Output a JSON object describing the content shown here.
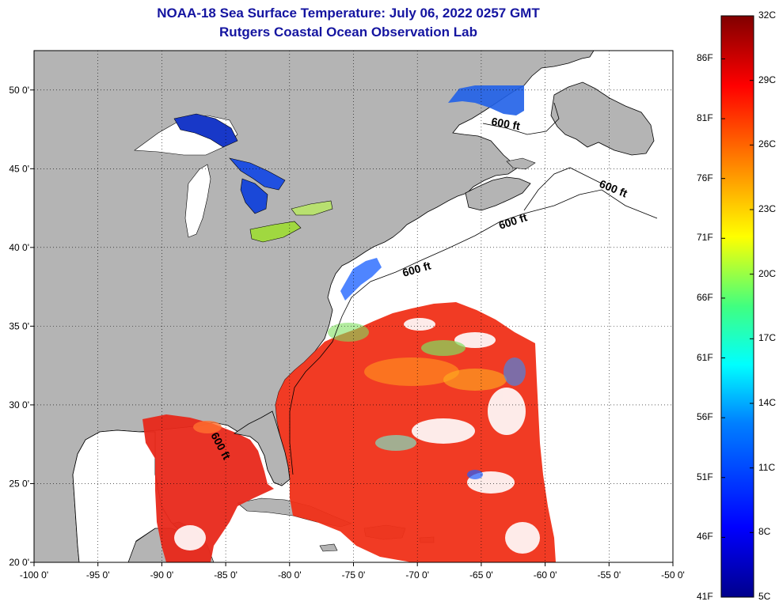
{
  "title": "NOAA-18 Sea Surface Temperature:  July 06, 2022 0257 GMT",
  "subtitle": "Rutgers Coastal Ocean Observation Lab",
  "map": {
    "lon_range": [
      -100,
      -50
    ],
    "lat_range": [
      20,
      52.5
    ],
    "lon_ticks": [
      "-100 0'",
      "-95 0'",
      "-90 0'",
      "-85 0'",
      "-80 0'",
      "-75 0'",
      "-70 0'",
      "-65 0'",
      "-60 0'",
      "-55 0'",
      "-50 0'"
    ],
    "lat_ticks": [
      "50 0'",
      "45 0'",
      "40 0'",
      "35 0'",
      "30 0'",
      "25 0'",
      "20 0'"
    ],
    "isobath_labels": [
      "600 ft",
      "600 ft",
      "600 ft",
      "600 ft",
      "600 ft"
    ],
    "land_color": "#b4b4b4",
    "nodata_color": "#ffffff"
  },
  "colorbar": {
    "celsius_labels": [
      "32C",
      "29C",
      "26C",
      "23C",
      "20C",
      "17C",
      "14C",
      "11C",
      "8C",
      "5C"
    ],
    "fahrenheit_labels": [
      "86F",
      "81F",
      "76F",
      "71F",
      "66F",
      "61F",
      "56F",
      "51F",
      "46F",
      "41F"
    ],
    "min_c": 5,
    "max_c": 32
  }
}
